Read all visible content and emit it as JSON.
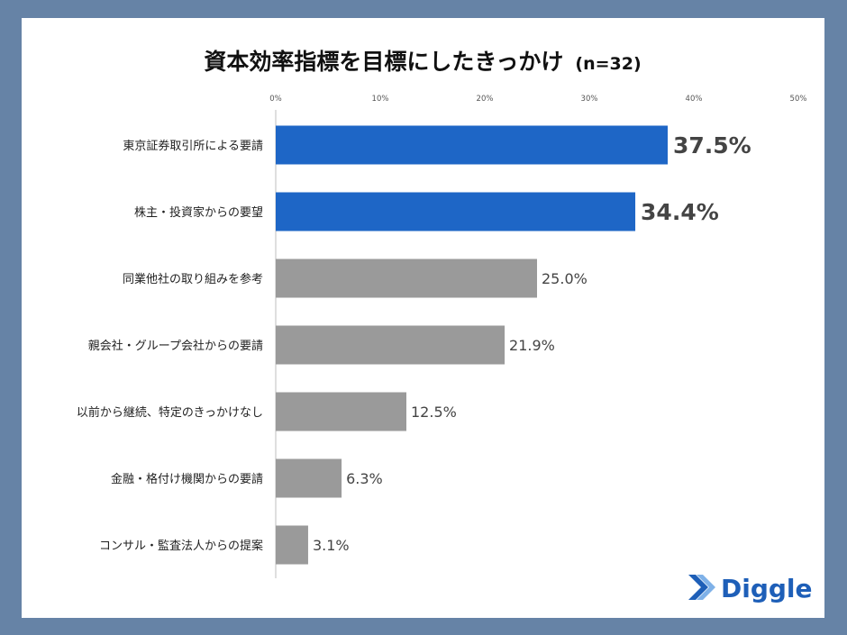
{
  "chart_data": {
    "type": "bar",
    "orientation": "horizontal",
    "title": "資本効率指標を目標にしたきっかけ",
    "subtitle": "(n=32)",
    "categories": [
      "東京証券取引所による要請",
      "株主・投資家からの要望",
      "同業他社の取り組みを参考",
      "親会社・グループ会社からの要請",
      "以前から継続、特定のきっかけなし",
      "金融・格付け機関からの要請",
      "コンサル・監査法人からの提案"
    ],
    "values": [
      37.5,
      34.4,
      25.0,
      21.9,
      12.5,
      6.3,
      3.1
    ],
    "value_labels": [
      "37.5%",
      "34.4%",
      "25.0%",
      "21.9%",
      "12.5%",
      "6.3%",
      "3.1%"
    ],
    "highlighted": [
      true,
      true,
      false,
      false,
      false,
      false,
      false
    ],
    "xlim": [
      0,
      50
    ],
    "x_ticks": [
      0,
      10,
      20,
      30,
      40,
      50
    ],
    "x_tick_labels": [
      "0%",
      "10%",
      "20%",
      "30%",
      "40%",
      "50%"
    ],
    "x_axis_position": "top",
    "grid": false,
    "legend": "none",
    "colors": {
      "highlight": "#1e66c6",
      "default": "#9a9a9a",
      "highlight_label": "#1e66c6"
    }
  },
  "brand": {
    "name": "Diggle",
    "color": "#1e5fb8",
    "icon": "diggle-logo-icon"
  },
  "page": {
    "frame_color": "#6683a6",
    "background": "#ffffff"
  }
}
